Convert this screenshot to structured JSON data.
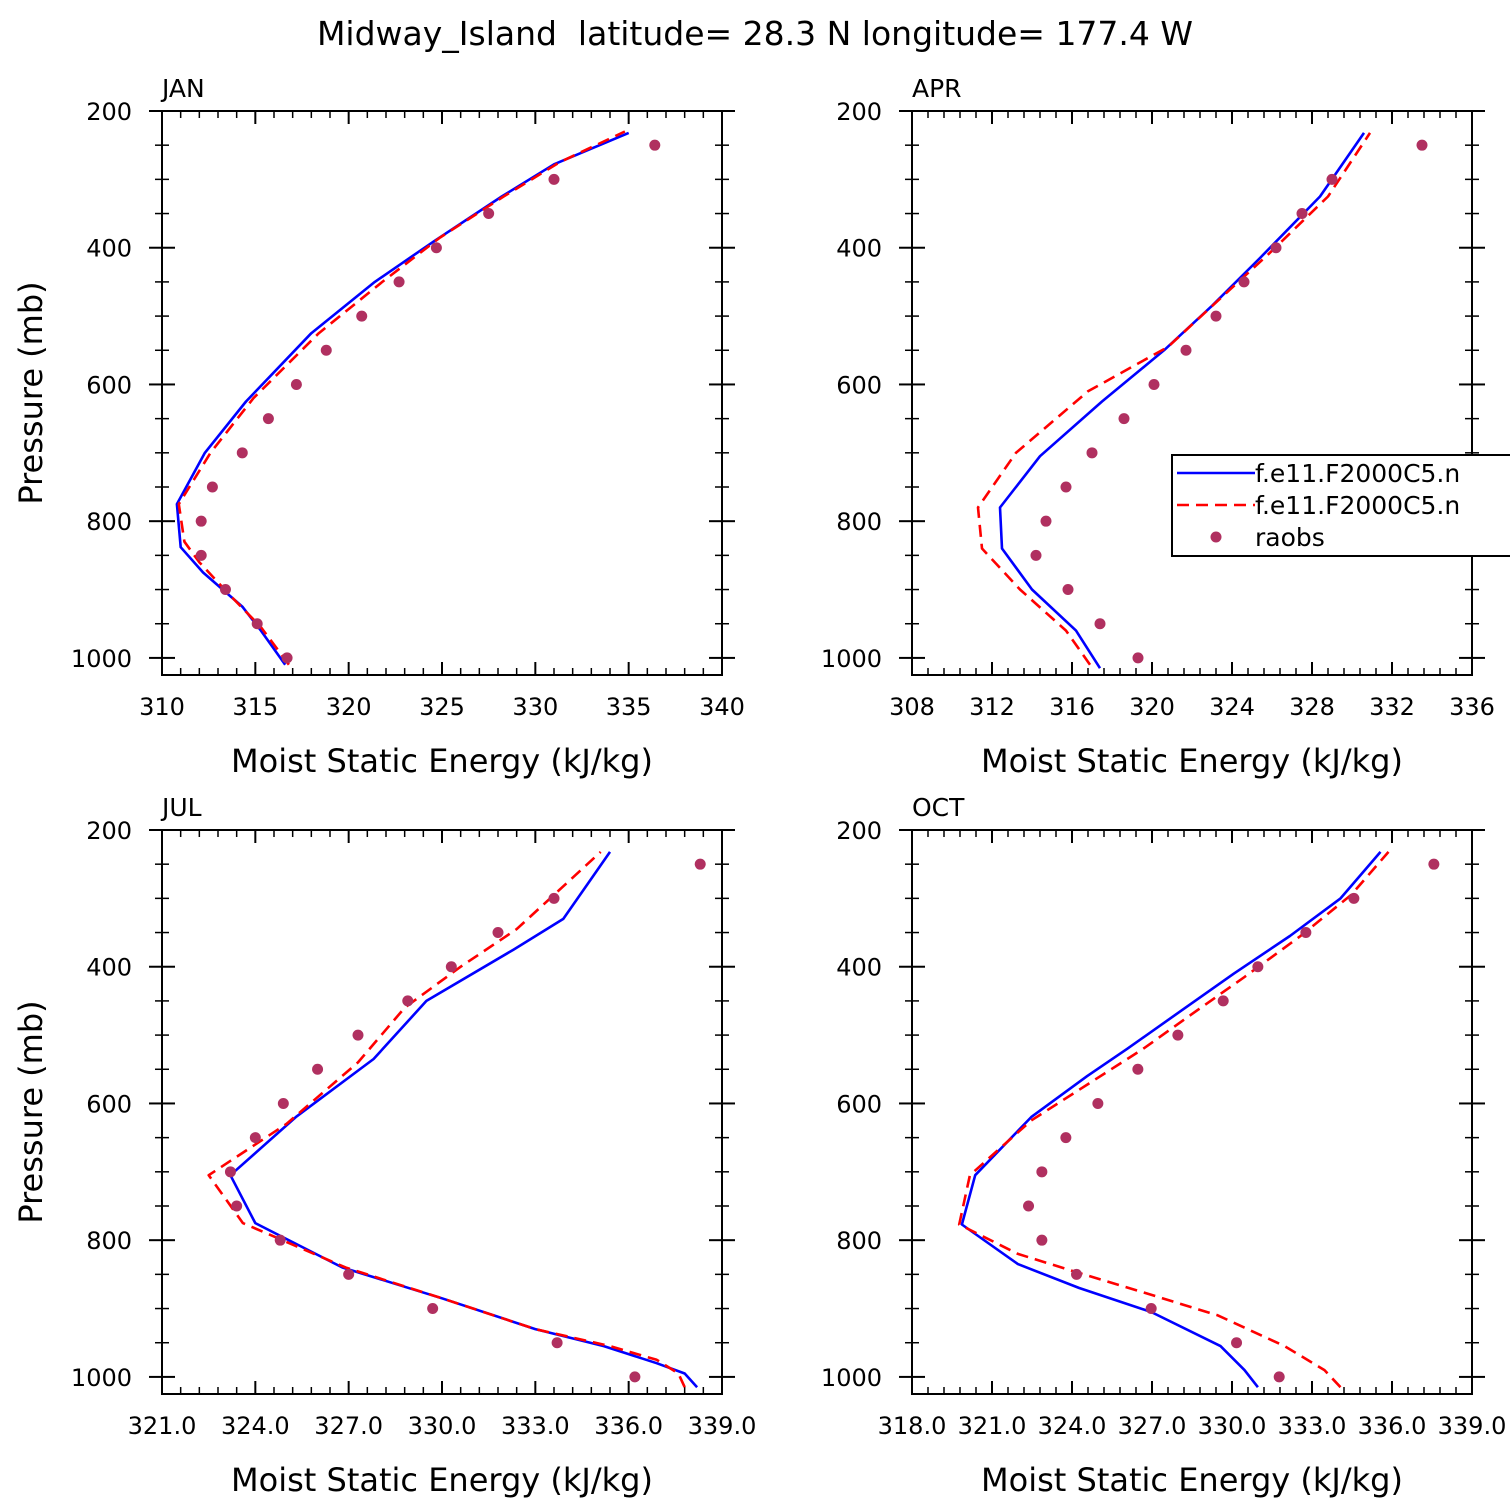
{
  "title": "Midway_Island  latitude= 28.3 N longitude= 177.4 W",
  "colors": {
    "model1": "#0000ff",
    "model2": "#ff0000",
    "raobs": "#b03060"
  },
  "legend": {
    "entries": [
      "f.e11.F2000C5.n",
      "f.e11.F2000C5.n",
      "raobs"
    ],
    "panel": "APR",
    "placement": "right-middle"
  },
  "chart_data": [
    {
      "type": "line",
      "panel": "JAN",
      "xlabel": "Moist Static Energy (kJ/kg)",
      "ylabel": "Pressure (mb)",
      "xlim": [
        310,
        340
      ],
      "ylim": [
        200,
        1025
      ],
      "y_inverted": true,
      "xticks": [
        310,
        315,
        320,
        325,
        330,
        335,
        340
      ],
      "xtick_labels": [
        "310",
        "315",
        "320",
        "325",
        "330",
        "335",
        "340"
      ],
      "yticks": [
        200,
        400,
        600,
        800,
        1000
      ],
      "ytick_labels": [
        "200",
        "400",
        "600",
        "800",
        "1000"
      ],
      "series": [
        {
          "name": "f.e11.F2000C5.n",
          "style": "solid",
          "points": [
            [
              316.6,
              1010
            ],
            [
              315.3,
              960
            ],
            [
              314.3,
              925
            ],
            [
              312.2,
              875
            ],
            [
              311.0,
              838
            ],
            [
              310.8,
              775
            ],
            [
              312.3,
              700
            ],
            [
              314.5,
              625
            ],
            [
              318.0,
              525
            ],
            [
              321.4,
              450
            ],
            [
              324.6,
              390
            ],
            [
              328.2,
              325
            ],
            [
              331.0,
              278
            ],
            [
              335.0,
              232
            ]
          ]
        },
        {
          "name": "f.e11.F2000C5.n",
          "style": "dashed",
          "points": [
            [
              316.8,
              1010
            ],
            [
              315.3,
              955
            ],
            [
              313.7,
              910
            ],
            [
              312.0,
              860
            ],
            [
              311.2,
              830
            ],
            [
              310.9,
              775
            ],
            [
              312.6,
              700
            ],
            [
              314.9,
              620
            ],
            [
              318.4,
              525
            ],
            [
              321.8,
              450
            ],
            [
              324.9,
              385
            ],
            [
              328.3,
              325
            ],
            [
              331.3,
              275
            ],
            [
              334.8,
              230
            ]
          ]
        },
        {
          "name": "raobs",
          "style": "dots",
          "points": [
            [
              316.7,
              1000
            ],
            [
              315.1,
              950
            ],
            [
              313.4,
              900
            ],
            [
              312.1,
              850
            ],
            [
              312.1,
              800
            ],
            [
              312.7,
              750
            ],
            [
              314.3,
              700
            ],
            [
              315.7,
              650
            ],
            [
              317.2,
              600
            ],
            [
              318.8,
              550
            ],
            [
              320.7,
              500
            ],
            [
              322.7,
              450
            ],
            [
              324.7,
              400
            ],
            [
              327.5,
              350
            ],
            [
              331.0,
              300
            ],
            [
              336.4,
              250
            ]
          ]
        }
      ]
    },
    {
      "type": "line",
      "panel": "APR",
      "xlabel": "Moist Static Energy (kJ/kg)",
      "ylabel": "",
      "xlim": [
        308,
        336
      ],
      "ylim": [
        200,
        1025
      ],
      "y_inverted": true,
      "xticks": [
        308,
        312,
        316,
        320,
        324,
        328,
        332,
        336
      ],
      "xtick_labels": [
        "308",
        "312",
        "316",
        "320",
        "324",
        "328",
        "332",
        "336"
      ],
      "yticks": [
        200,
        400,
        600,
        800,
        1000
      ],
      "ytick_labels": [
        "200",
        "400",
        "600",
        "800",
        "1000"
      ],
      "series": [
        {
          "name": "f.e11.F2000C5.n",
          "style": "solid",
          "points": [
            [
              317.4,
              1015
            ],
            [
              316.2,
              960
            ],
            [
              314.0,
              900
            ],
            [
              312.5,
              840
            ],
            [
              312.4,
              780
            ],
            [
              314.4,
              705
            ],
            [
              317.5,
              625
            ],
            [
              320.6,
              550
            ],
            [
              323.0,
              485
            ],
            [
              325.4,
              415
            ],
            [
              328.4,
              325
            ],
            [
              330.6,
              232
            ]
          ]
        },
        {
          "name": "f.e11.F2000C5.n",
          "style": "dashed",
          "points": [
            [
              316.9,
              1010
            ],
            [
              315.7,
              960
            ],
            [
              313.4,
              900
            ],
            [
              311.5,
              840
            ],
            [
              311.3,
              780
            ],
            [
              313.2,
              700
            ],
            [
              316.8,
              610
            ],
            [
              320.8,
              545
            ],
            [
              323.2,
              480
            ],
            [
              325.8,
              410
            ],
            [
              328.8,
              325
            ],
            [
              330.9,
              232
            ]
          ]
        },
        {
          "name": "raobs",
          "style": "dots",
          "points": [
            [
              319.3,
              1000
            ],
            [
              317.4,
              950
            ],
            [
              315.8,
              900
            ],
            [
              314.2,
              850
            ],
            [
              314.7,
              800
            ],
            [
              315.7,
              750
            ],
            [
              317.0,
              700
            ],
            [
              318.6,
              650
            ],
            [
              320.1,
              600
            ],
            [
              321.7,
              550
            ],
            [
              323.2,
              500
            ],
            [
              324.6,
              450
            ],
            [
              326.2,
              400
            ],
            [
              327.5,
              350
            ],
            [
              329.0,
              300
            ],
            [
              333.5,
              250
            ]
          ]
        }
      ]
    },
    {
      "type": "line",
      "panel": "JUL",
      "xlabel": "Moist Static Energy (kJ/kg)",
      "ylabel": "Pressure (mb)",
      "xlim": [
        321,
        339
      ],
      "ylim": [
        200,
        1025
      ],
      "y_inverted": true,
      "xticks": [
        321,
        324,
        327,
        330,
        333,
        336,
        339
      ],
      "xtick_labels": [
        "321.0",
        "324.0",
        "327.0",
        "330.0",
        "333.0",
        "336.0",
        "339.0"
      ],
      "yticks": [
        200,
        400,
        600,
        800,
        1000
      ],
      "ytick_labels": [
        "200",
        "400",
        "600",
        "800",
        "1000"
      ],
      "series": [
        {
          "name": "f.e11.F2000C5.n",
          "style": "solid",
          "points": [
            [
              338.2,
              1015
            ],
            [
              337.8,
              995
            ],
            [
              336.9,
              980
            ],
            [
              335.2,
              955
            ],
            [
              333.0,
              930
            ],
            [
              330.0,
              885
            ],
            [
              326.8,
              840
            ],
            [
              324.0,
              775
            ],
            [
              323.2,
              705
            ],
            [
              325.3,
              620
            ],
            [
              327.8,
              535
            ],
            [
              329.5,
              450
            ],
            [
              332.3,
              375
            ],
            [
              333.9,
              330
            ],
            [
              335.4,
              232
            ]
          ]
        },
        {
          "name": "f.e11.F2000C5.n",
          "style": "dashed",
          "points": [
            [
              337.8,
              1015
            ],
            [
              337.6,
              995
            ],
            [
              336.9,
              975
            ],
            [
              335.4,
              955
            ],
            [
              333.0,
              930
            ],
            [
              330.0,
              885
            ],
            [
              326.9,
              840
            ],
            [
              323.6,
              775
            ],
            [
              322.5,
              705
            ],
            [
              325.0,
              630
            ],
            [
              327.3,
              540
            ],
            [
              328.8,
              460
            ],
            [
              330.6,
              400
            ],
            [
              332.4,
              345
            ],
            [
              335.1,
              232
            ]
          ]
        },
        {
          "name": "raobs",
          "style": "dots",
          "points": [
            [
              336.2,
              1000
            ],
            [
              333.7,
              950
            ],
            [
              329.7,
              900
            ],
            [
              327.0,
              850
            ],
            [
              324.8,
              800
            ],
            [
              323.4,
              750
            ],
            [
              323.2,
              700
            ],
            [
              324.0,
              650
            ],
            [
              324.9,
              600
            ],
            [
              326.0,
              550
            ],
            [
              327.3,
              500
            ],
            [
              328.9,
              450
            ],
            [
              330.3,
              400
            ],
            [
              331.8,
              350
            ],
            [
              333.6,
              300
            ],
            [
              338.3,
              250
            ]
          ]
        }
      ]
    },
    {
      "type": "line",
      "panel": "OCT",
      "xlabel": "Moist Static Energy (kJ/kg)",
      "ylabel": "",
      "xlim": [
        318.03,
        339.03
      ],
      "ylim": [
        200,
        1025
      ],
      "y_inverted": true,
      "xticks": [
        318.03,
        321.03,
        324.03,
        327.03,
        330.03,
        333.03,
        336.03,
        339.03
      ],
      "xtick_labels": [
        "318.0",
        "321.0",
        "324.0",
        "327.0",
        "330.0",
        "333.0",
        "336.0",
        "339.0"
      ],
      "yticks": [
        200,
        400,
        600,
        800,
        1000
      ],
      "ytick_labels": [
        "200",
        "400",
        "600",
        "800",
        "1000"
      ],
      "series": [
        {
          "name": "f.e11.F2000C5.n",
          "style": "solid",
          "points": [
            [
              331.0,
              1015
            ],
            [
              330.5,
              990
            ],
            [
              329.6,
              955
            ],
            [
              327.0,
              905
            ],
            [
              324.3,
              870
            ],
            [
              322.0,
              835
            ],
            [
              319.9,
              777
            ],
            [
              320.4,
              705
            ],
            [
              322.5,
              620
            ],
            [
              324.6,
              560
            ],
            [
              326.1,
              520
            ],
            [
              328.1,
              465
            ],
            [
              330.1,
              410
            ],
            [
              332.2,
              355
            ],
            [
              334.1,
              300
            ],
            [
              335.6,
              232
            ]
          ]
        },
        {
          "name": "f.e11.F2000C5.n",
          "style": "dashed",
          "points": [
            [
              334.1,
              1015
            ],
            [
              333.5,
              990
            ],
            [
              332.0,
              955
            ],
            [
              329.5,
              910
            ],
            [
              326.6,
              875
            ],
            [
              324.3,
              848
            ],
            [
              322.0,
              820
            ],
            [
              319.8,
              777
            ],
            [
              320.2,
              705
            ],
            [
              322.5,
              625
            ],
            [
              324.9,
              565
            ],
            [
              326.7,
              520
            ],
            [
              328.5,
              470
            ],
            [
              330.5,
              415
            ],
            [
              332.6,
              355
            ],
            [
              334.5,
              295
            ],
            [
              335.9,
              232
            ]
          ]
        },
        {
          "name": "raobs",
          "style": "dots",
          "points": [
            [
              331.8,
              1000
            ],
            [
              330.2,
              950
            ],
            [
              327.0,
              900
            ],
            [
              324.2,
              850
            ],
            [
              322.9,
              800
            ],
            [
              322.4,
              750
            ],
            [
              322.9,
              700
            ],
            [
              323.8,
              650
            ],
            [
              325.0,
              600
            ],
            [
              326.5,
              550
            ],
            [
              328.0,
              500
            ],
            [
              329.7,
              450
            ],
            [
              331.0,
              400
            ],
            [
              332.8,
              350
            ],
            [
              334.6,
              300
            ],
            [
              337.6,
              250
            ]
          ]
        }
      ]
    }
  ]
}
